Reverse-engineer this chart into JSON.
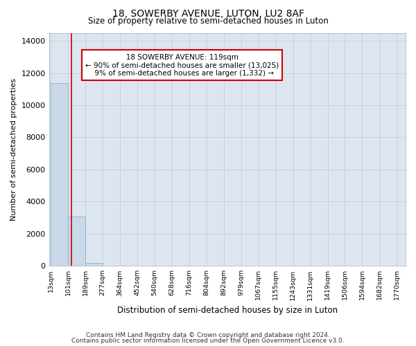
{
  "title1": "18, SOWERBY AVENUE, LUTON, LU2 8AF",
  "title2": "Size of property relative to semi-detached houses in Luton",
  "xlabel": "Distribution of semi-detached houses by size in Luton",
  "ylabel": "Number of semi-detached properties",
  "property_label": "18 SOWERBY AVENUE: 119sqm",
  "smaller_pct": "90%",
  "smaller_count": "13,025",
  "larger_pct": "9%",
  "larger_count": "1,332",
  "bin_edges": [
    13,
    101,
    189,
    277,
    364,
    452,
    540,
    628,
    716,
    804,
    892,
    979,
    1067,
    1155,
    1243,
    1331,
    1419,
    1506,
    1594,
    1682,
    1770
  ],
  "bar_values": [
    11400,
    3050,
    200,
    0,
    0,
    0,
    0,
    0,
    0,
    0,
    0,
    0,
    0,
    0,
    0,
    0,
    0,
    0,
    0,
    0
  ],
  "bar_color": "#c9d9ea",
  "bar_edge_color": "#8bafc8",
  "vline_color": "#cc0000",
  "vline_x": 119,
  "annotation_box_edge_color": "#cc0000",
  "grid_color": "#b8c8dc",
  "plot_bg_color": "#dde6f0",
  "ylim": [
    0,
    14500
  ],
  "yticks": [
    0,
    2000,
    4000,
    6000,
    8000,
    10000,
    12000,
    14000
  ],
  "footer1": "Contains HM Land Registry data © Crown copyright and database right 2024.",
  "footer2": "Contains public sector information licensed under the Open Government Licence v3.0."
}
